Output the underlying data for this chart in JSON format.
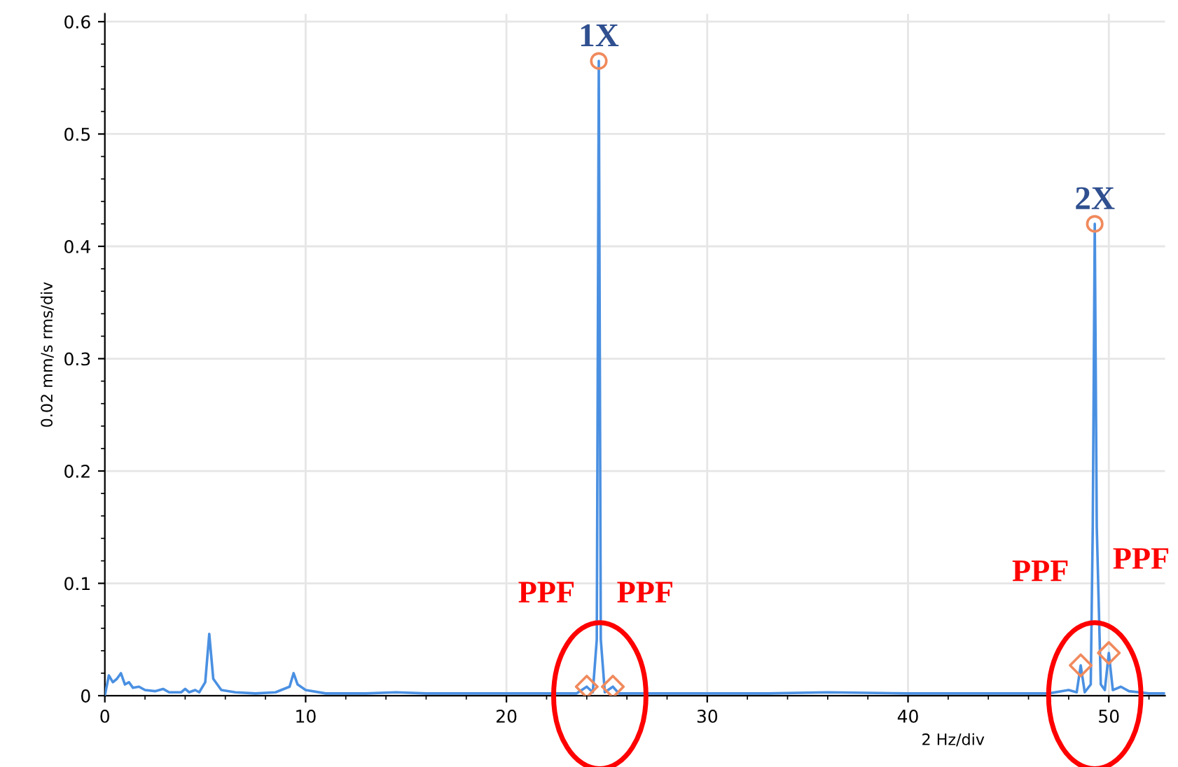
{
  "chart_data": {
    "type": "line",
    "xlabel": "2 Hz/div",
    "ylabel": "0.02 mm/s rms/div",
    "xlim": [
      0,
      52.8
    ],
    "ylim": [
      0,
      0.607
    ],
    "xticks": [
      0,
      10,
      20,
      30,
      40,
      50
    ],
    "yticks": [
      0,
      0.1,
      0.2,
      0.3,
      0.4,
      0.5,
      0.6
    ],
    "grid": true,
    "series": [
      {
        "color": "#4a90e2",
        "marker": "none",
        "x": [
          0,
          0.2,
          0.4,
          0.6,
          0.8,
          1.0,
          1.2,
          1.4,
          1.7,
          2.0,
          2.5,
          2.9,
          3.2,
          3.8,
          4.0,
          4.2,
          4.5,
          4.7,
          5.0,
          5.2,
          5.4,
          5.8,
          6.5,
          7.5,
          8.5,
          9.2,
          9.4,
          9.6,
          10,
          11,
          13,
          14.5,
          16,
          18,
          20,
          22,
          23.5,
          24.0,
          24.3,
          24.5,
          24.6,
          24.7,
          24.9,
          25.3,
          25.6,
          27,
          30,
          33,
          36,
          40,
          44,
          47,
          48,
          48.4,
          48.6,
          48.8,
          49.1,
          49.2,
          49.3,
          49.4,
          49.6,
          49.8,
          50.0,
          50.2,
          50.6,
          51,
          51.5,
          52,
          52.8
        ],
        "values": [
          0,
          0.018,
          0.012,
          0.015,
          0.02,
          0.01,
          0.012,
          0.007,
          0.008,
          0.005,
          0.004,
          0.006,
          0.003,
          0.003,
          0.006,
          0.003,
          0.005,
          0.003,
          0.012,
          0.055,
          0.015,
          0.005,
          0.003,
          0.002,
          0.003,
          0.008,
          0.02,
          0.01,
          0.005,
          0.002,
          0.002,
          0.003,
          0.002,
          0.002,
          0.002,
          0.002,
          0.002,
          0.008,
          0.003,
          0.05,
          0.565,
          0.05,
          0.003,
          0.008,
          0.002,
          0.002,
          0.002,
          0.002,
          0.003,
          0.002,
          0.002,
          0.002,
          0.005,
          0.003,
          0.027,
          0.003,
          0.01,
          0.15,
          0.42,
          0.15,
          0.01,
          0.005,
          0.038,
          0.005,
          0.008,
          0.004,
          0.003,
          0.002,
          0.002
        ]
      },
      {
        "type": "scatter",
        "color": "#f08a5d",
        "marker": "circle",
        "x": [
          24.6,
          49.3
        ],
        "values": [
          0.565,
          0.42
        ]
      },
      {
        "type": "scatter",
        "color": "#f08a5d",
        "marker": "diamond",
        "x": [
          24.0,
          25.3,
          48.6,
          50.0
        ],
        "values": [
          0.008,
          0.008,
          0.027,
          0.038
        ]
      }
    ],
    "annotations": [
      {
        "text": "1X",
        "x": 24.6,
        "y": 0.565
      },
      {
        "text": "2X",
        "x": 49.3,
        "y": 0.42
      },
      {
        "text": "PPF",
        "x": 24.0,
        "y": 0.008
      },
      {
        "text": "PPF",
        "x": 25.3,
        "y": 0.008
      },
      {
        "text": "PPF",
        "x": 48.6,
        "y": 0.027
      },
      {
        "text": "PPF",
        "x": 50.0,
        "y": 0.038
      }
    ]
  }
}
